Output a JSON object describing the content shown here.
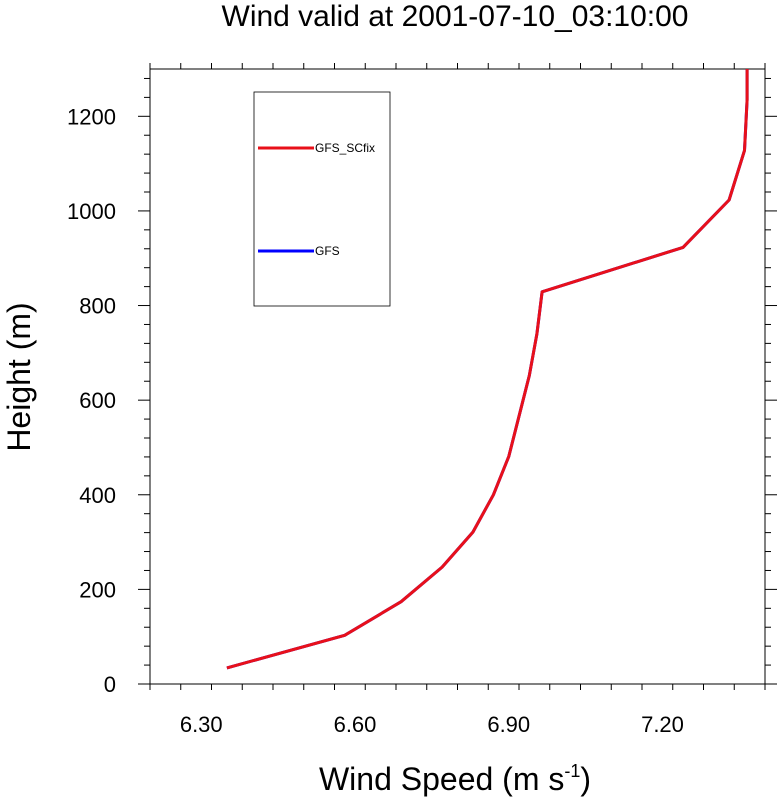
{
  "chart_data": {
    "type": "line",
    "title": "Wind valid at 2001-07-10_03:10:00",
    "xlabel": "Wind Speed (m s",
    "xlabel_sup": "-1",
    "xlabel_end": ")",
    "ylabel": "Height (m)",
    "xlim": [
      6.2,
      7.4
    ],
    "ylim": [
      0,
      1300
    ],
    "xticks": [
      6.3,
      6.6,
      6.9,
      7.2
    ],
    "xtick_labels": [
      "6.30",
      "6.60",
      "6.90",
      "7.20"
    ],
    "yticks": [
      0,
      200,
      400,
      600,
      800,
      1000,
      1200
    ],
    "ytick_labels": [
      "0",
      "200",
      "400",
      "600",
      "800",
      "1000",
      "1200"
    ],
    "grid": false,
    "legend_position": "top-left",
    "series": [
      {
        "name": "GFS",
        "color": "#0000ff",
        "x": [
          6.35,
          6.58,
          6.69,
          6.77,
          6.83,
          6.87,
          6.9,
          6.92,
          6.94,
          6.955,
          6.965,
          7.24,
          7.33,
          7.36,
          7.365,
          7.365
        ],
        "y": [
          34,
          103,
          174,
          247,
          321,
          400,
          481,
          566,
          652,
          740,
          829,
          923,
          1023,
          1128,
          1235,
          1300
        ]
      },
      {
        "name": "GFS_SCfix",
        "color": "#e8101a",
        "x": [
          6.35,
          6.58,
          6.69,
          6.77,
          6.83,
          6.87,
          6.9,
          6.92,
          6.94,
          6.955,
          6.965,
          7.24,
          7.33,
          7.36,
          7.365,
          7.365
        ],
        "y": [
          34,
          103,
          174,
          247,
          321,
          400,
          481,
          566,
          652,
          740,
          829,
          923,
          1023,
          1128,
          1235,
          1300
        ]
      }
    ],
    "legend": [
      {
        "name": "GFS_SCfix",
        "color": "#e8101a"
      },
      {
        "name": "GFS",
        "color": "#0000ff"
      }
    ]
  }
}
